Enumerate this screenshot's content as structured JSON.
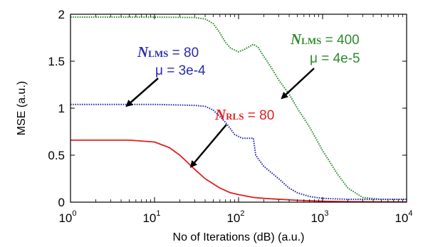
{
  "chart_data": {
    "type": "line",
    "title": "",
    "xlabel": "No of Iterations (dB) (a.u.)",
    "ylabel": "MSE (a.u.)",
    "xscale": "log",
    "xlim": [
      1,
      10000
    ],
    "ylim": [
      0,
      2
    ],
    "grid": false,
    "x_ticks": [
      {
        "base": "10",
        "exp": "0"
      },
      {
        "base": "10",
        "exp": "1"
      },
      {
        "base": "10",
        "exp": "2"
      },
      {
        "base": "10",
        "exp": "3"
      },
      {
        "base": "10",
        "exp": "4"
      }
    ],
    "y_ticks": [
      "0",
      "0.5",
      "1",
      "1.5",
      "2"
    ],
    "series": [
      {
        "color": "#2e8b2e",
        "style": "dotted",
        "points": [
          [
            1,
            1.97
          ],
          [
            10,
            1.97
          ],
          [
            30,
            1.965
          ],
          [
            40,
            1.95
          ],
          [
            50,
            1.9
          ],
          [
            60,
            1.8
          ],
          [
            70,
            1.7
          ],
          [
            80,
            1.64
          ],
          [
            100,
            1.6
          ],
          [
            120,
            1.63
          ],
          [
            150,
            1.68
          ],
          [
            170,
            1.65
          ],
          [
            200,
            1.55
          ],
          [
            250,
            1.42
          ],
          [
            300,
            1.3
          ],
          [
            400,
            1.15
          ],
          [
            500,
            1.0
          ],
          [
            700,
            0.8
          ],
          [
            1000,
            0.55
          ],
          [
            1500,
            0.3
          ],
          [
            2000,
            0.15
          ],
          [
            3000,
            0.05
          ],
          [
            5000,
            0.03
          ],
          [
            10000,
            0.03
          ]
        ]
      },
      {
        "color": "#2b2bb0",
        "style": "dotted",
        "points": [
          [
            1,
            1.04
          ],
          [
            10,
            1.04
          ],
          [
            30,
            1.03
          ],
          [
            40,
            1.02
          ],
          [
            50,
            0.98
          ],
          [
            70,
            0.85
          ],
          [
            90,
            0.72
          ],
          [
            110,
            0.68
          ],
          [
            150,
            0.68
          ],
          [
            160,
            0.5
          ],
          [
            200,
            0.38
          ],
          [
            300,
            0.25
          ],
          [
            400,
            0.15
          ],
          [
            500,
            0.1
          ],
          [
            700,
            0.06
          ],
          [
            1000,
            0.04
          ],
          [
            2000,
            0.03
          ],
          [
            10000,
            0.03
          ]
        ]
      },
      {
        "color": "#e02020",
        "style": "solid",
        "points": [
          [
            1,
            0.66
          ],
          [
            5,
            0.66
          ],
          [
            10,
            0.64
          ],
          [
            15,
            0.58
          ],
          [
            20,
            0.5
          ],
          [
            30,
            0.35
          ],
          [
            40,
            0.25
          ],
          [
            60,
            0.15
          ],
          [
            80,
            0.1
          ],
          [
            100,
            0.08
          ],
          [
            150,
            0.05
          ],
          [
            200,
            0.04
          ],
          [
            500,
            0.02
          ],
          [
            1000,
            0.01
          ],
          [
            2000,
            0.005
          ],
          [
            10000,
            0.003
          ]
        ]
      }
    ],
    "annotations": [
      {
        "name": "N",
        "sub": "LMS",
        "value": " = 80",
        "line2": "μ = 3e-4",
        "color": "#2b2bb0"
      },
      {
        "name": "N",
        "sub": "LMS",
        "value": " = 400",
        "line2": "μ = 4e-5",
        "color": "#2e8b2e"
      },
      {
        "name": "N",
        "sub": "RLS",
        "value": " = 80",
        "line2": "",
        "color": "#e02020"
      }
    ]
  }
}
